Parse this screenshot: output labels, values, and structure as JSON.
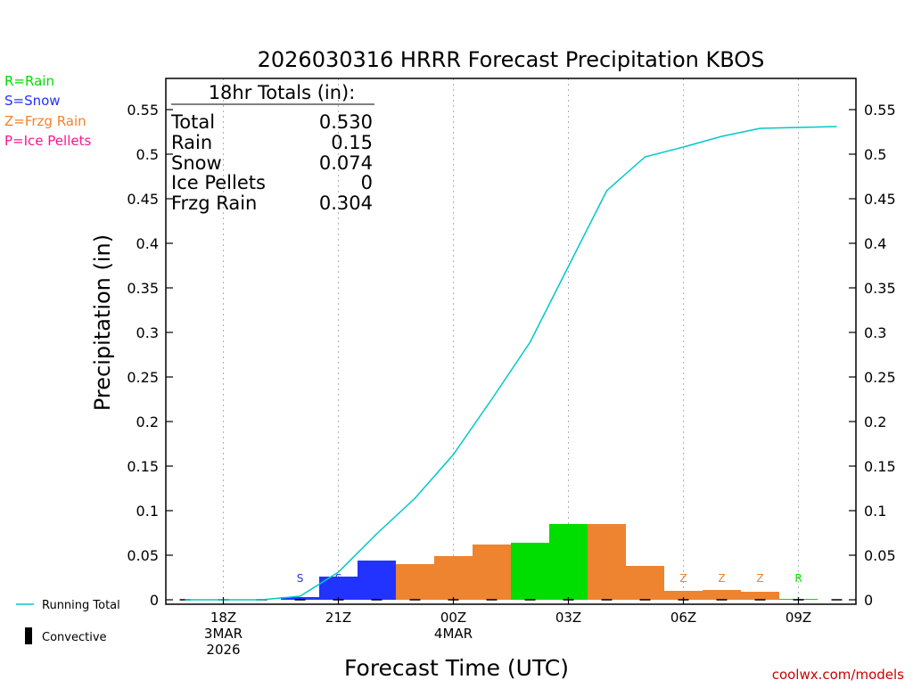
{
  "chart_data": {
    "type": "bar",
    "title": "2026030316 HRRR Forecast Precipitation KBOS",
    "xlabel": "Forecast Time (UTC)",
    "ylabel": "Precipitation (in)",
    "ylim": [
      -0.005,
      0.585
    ],
    "xlim": [
      16.5,
      34.5
    ],
    "y_ticks": [
      0,
      0.05,
      0.1,
      0.15,
      0.2,
      0.25,
      0.3,
      0.35,
      0.4,
      0.45,
      0.5,
      0.55
    ],
    "y_tick_labels": [
      "0",
      "0.05",
      "0.1",
      "0.15",
      "0.2",
      "0.25",
      "0.3",
      "0.35",
      "0.4",
      "0.45",
      "0.5",
      "0.55"
    ],
    "x_ticks": [
      {
        "x": 18,
        "lines": [
          "18Z",
          "3MAR",
          "2026"
        ]
      },
      {
        "x": 21,
        "lines": [
          "21Z"
        ]
      },
      {
        "x": 24,
        "lines": [
          "00Z",
          "4MAR"
        ]
      },
      {
        "x": 27,
        "lines": [
          "03Z"
        ]
      },
      {
        "x": 30,
        "lines": [
          "06Z"
        ]
      },
      {
        "x": 33,
        "lines": [
          "09Z"
        ]
      }
    ],
    "bars": [
      {
        "x": 17,
        "value": 0.0,
        "type": "",
        "color": "#000000"
      },
      {
        "x": 18,
        "value": 0.0,
        "type": "",
        "color": "#000000"
      },
      {
        "x": 19,
        "value": 0.0,
        "type": "",
        "color": "#000000"
      },
      {
        "x": 20,
        "value": 0.003,
        "type": "S",
        "color": "#2233ff"
      },
      {
        "x": 21,
        "value": 0.026,
        "type": "S",
        "color": "#2233ff"
      },
      {
        "x": 22,
        "value": 0.044,
        "type": "S",
        "color": "#2233ff"
      },
      {
        "x": 23,
        "value": 0.04,
        "type": "Z",
        "color": "#ee8330"
      },
      {
        "x": 24,
        "value": 0.049,
        "type": "Z",
        "color": "#ee8330"
      },
      {
        "x": 25,
        "value": 0.062,
        "type": "Z",
        "color": "#ee8330"
      },
      {
        "x": 26,
        "value": 0.064,
        "type": "R",
        "color": "#00dd00"
      },
      {
        "x": 27,
        "value": 0.085,
        "type": "R",
        "color": "#00dd00"
      },
      {
        "x": 28,
        "value": 0.085,
        "type": "Z",
        "color": "#ee8330"
      },
      {
        "x": 29,
        "value": 0.038,
        "type": "Z",
        "color": "#ee8330"
      },
      {
        "x": 30,
        "value": 0.01,
        "type": "Z",
        "color": "#ee8330"
      },
      {
        "x": 31,
        "value": 0.011,
        "type": "Z",
        "color": "#ee8330"
      },
      {
        "x": 32,
        "value": 0.009,
        "type": "Z",
        "color": "#ee8330"
      },
      {
        "x": 33,
        "value": 0.001,
        "type": "R",
        "color": "#00dd00"
      },
      {
        "x": 34,
        "value": 0.0,
        "type": "",
        "color": "#000000"
      }
    ],
    "running_total": {
      "name": "Running Total",
      "color": "#00c8c8",
      "x": [
        17,
        18,
        19,
        20,
        21,
        22,
        23,
        24,
        25,
        26,
        27,
        28,
        29,
        30,
        31,
        32,
        33,
        34
      ],
      "y": [
        0.0,
        0.0,
        0.0,
        0.004,
        0.031,
        0.074,
        0.114,
        0.163,
        0.225,
        0.289,
        0.374,
        0.459,
        0.497,
        0.508,
        0.52,
        0.529,
        0.53,
        0.531
      ]
    },
    "type_colors": {
      "R": "#00dd00",
      "S": "#2233ff",
      "Z": "#ee8330",
      "P": "#ff1493"
    }
  },
  "legend": {
    "types": [
      {
        "label": "R=Rain",
        "color": "#00dd00"
      },
      {
        "label": "S=Snow",
        "color": "#2233ff"
      },
      {
        "label": "Z=Frzg Rain",
        "color": "#ee8330"
      },
      {
        "label": "P=Ice Pellets",
        "color": "#ff1493"
      }
    ],
    "running_total_label": "Running Total",
    "convective_label": "Convective"
  },
  "totals": {
    "header": "18hr Totals (in):",
    "rows": [
      {
        "label": "Total",
        "value": "0.530"
      },
      {
        "label": "Rain",
        "value": "0.15"
      },
      {
        "label": "Snow",
        "value": "0.074"
      },
      {
        "label": "Ice Pellets",
        "value": "0"
      },
      {
        "label": "Frzg Rain",
        "value": "0.304"
      }
    ]
  },
  "credit": "coolwx.com/models"
}
